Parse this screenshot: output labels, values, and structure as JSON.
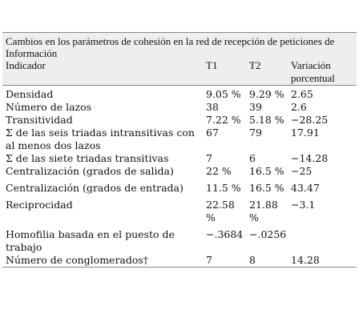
{
  "table": {
    "caption": "Cambios en los parámetros de cohesión en la red de recepción de peticiones de Información",
    "headers": [
      "Indicador",
      "T1",
      "T2",
      "Variación porcentual"
    ],
    "rows": [
      [
        "Densidad",
        "9.05 %",
        "9.29 %",
        "2.65"
      ],
      [
        "Número de lazos",
        "38",
        "39",
        "2.6"
      ],
      [
        "Transitividad",
        "7.22 %",
        "5.18 %",
        "−28.25"
      ],
      [
        "Σ de las seis triadas intransitivas con al menos dos lazos",
        "67",
        "79",
        "17.91"
      ],
      [
        "Σ de las siete triadas transitivas",
        "7",
        "6",
        "−14.28"
      ],
      [
        "Centralización (grados de salida)",
        "22 %",
        "16.5 %",
        "−25"
      ],
      [
        "Centralización (grados de entrada)",
        "11.5 %",
        "16.5 %",
        "43.47"
      ],
      [
        "Reciprocidad",
        "22.58 %",
        "21.88 %",
        "−3.1"
      ],
      [
        "Homofilia basada en el puesto de trabajo",
        "−.3684",
        "−.0256",
        ""
      ],
      [
        "Número de conglomerados†",
        "7",
        "8",
        "14.28"
      ]
    ]
  }
}
